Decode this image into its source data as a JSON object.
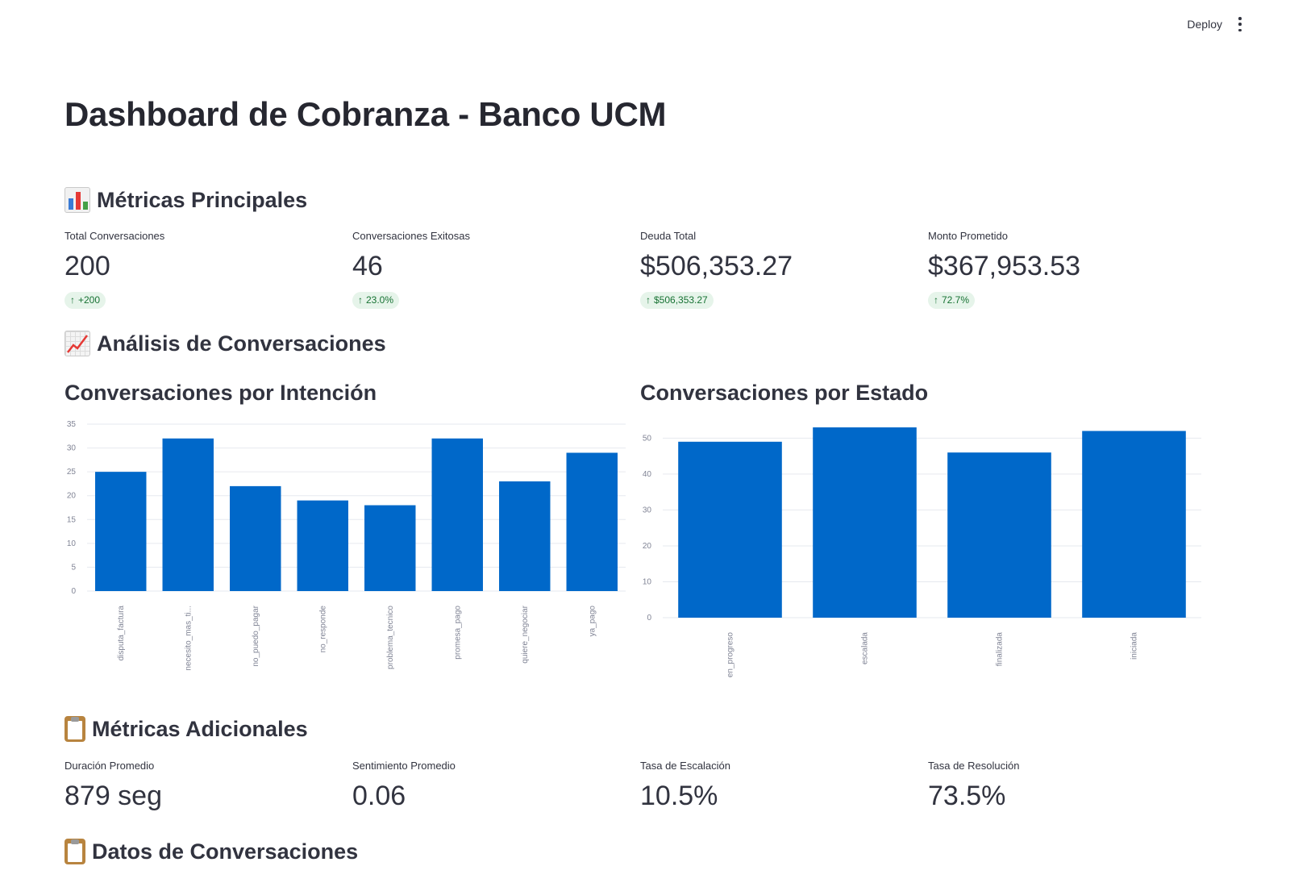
{
  "header": {
    "deploy_label": "Deploy",
    "menu_icon": "more-vertical-icon"
  },
  "title": "Dashboard de Cobranza - Banco UCM",
  "sections": {
    "principal": "Métricas Principales",
    "analisis": "Análisis de Conversaciones",
    "adicionales": "Métricas Adicionales",
    "datos": "Datos de Conversaciones"
  },
  "metrics": [
    {
      "label": "Total Conversaciones",
      "value": "200",
      "delta": "+200"
    },
    {
      "label": "Conversaciones Exitosas",
      "value": "46",
      "delta": "23.0%"
    },
    {
      "label": "Deuda Total",
      "value": "$506,353.27",
      "delta": "$506,353.27"
    },
    {
      "label": "Monto Prometido",
      "value": "$367,953.53",
      "delta": "72.7%"
    }
  ],
  "additional_metrics": [
    {
      "label": "Duración Promedio",
      "value": "879 seg"
    },
    {
      "label": "Sentimiento Promedio",
      "value": "0.06"
    },
    {
      "label": "Tasa de Escalación",
      "value": "10.5%"
    },
    {
      "label": "Tasa de Resolución",
      "value": "73.5%"
    }
  ],
  "colors": {
    "bar": "#0068c9",
    "delta_bg": "#e6f4ea",
    "delta_text": "#177233"
  },
  "chart_data": [
    {
      "type": "bar",
      "title": "Conversaciones por Intención",
      "categories": [
        "disputa_factura",
        "necesito_mas_ti...",
        "no_puedo_pagar",
        "no_responde",
        "problema_tecnico",
        "promesa_pago",
        "quiere_negociar",
        "ya_pago"
      ],
      "values": [
        25,
        32,
        22,
        19,
        18,
        32,
        23,
        29
      ],
      "ylim": [
        0,
        35
      ],
      "yticks": [
        0,
        5,
        10,
        15,
        20,
        25,
        30,
        35
      ],
      "grid": true
    },
    {
      "type": "bar",
      "title": "Conversaciones por Estado",
      "categories": [
        "en_progreso",
        "escalada",
        "finalizada",
        "iniciada"
      ],
      "values": [
        49,
        53,
        46,
        52
      ],
      "ylim": [
        0,
        53
      ],
      "yticks": [
        0,
        10,
        20,
        30,
        40,
        50
      ],
      "grid": true
    }
  ]
}
